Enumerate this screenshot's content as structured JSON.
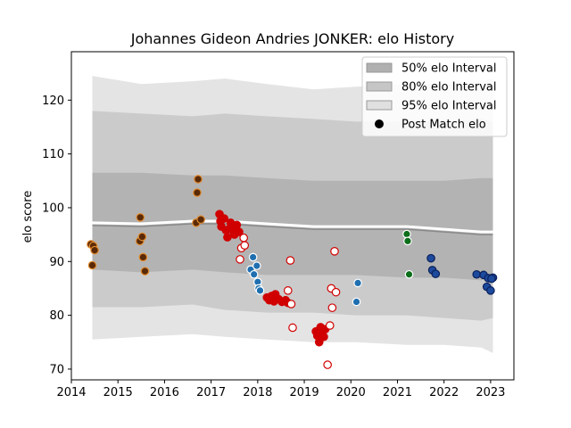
{
  "chart_data": {
    "type": "scatter",
    "title": "Johannes Gideon Andries JONKER: elo History",
    "xlabel": "",
    "ylabel": "elo score",
    "xlim": [
      2014.0,
      2023.5
    ],
    "ylim": [
      68,
      129
    ],
    "xticks": [
      "2014",
      "2015",
      "2016",
      "2017",
      "2018",
      "2019",
      "2020",
      "2021",
      "2022",
      "2023"
    ],
    "yticks": [
      "70",
      "80",
      "90",
      "100",
      "110",
      "120"
    ],
    "grid": false,
    "legend_position": "top-right",
    "legend": [
      {
        "label": "50% elo Interval",
        "kind": "band",
        "color": "#b0b0b0"
      },
      {
        "label": "80% elo Interval",
        "kind": "band",
        "color": "#c6c6c6"
      },
      {
        "label": "95% elo Interval",
        "kind": "band",
        "color": "#e0e0e0"
      },
      {
        "label": "Post Match elo",
        "kind": "marker",
        "color": "#000000"
      }
    ],
    "bands": {
      "x": [
        2014.45,
        2015.5,
        2016.6,
        2017.3,
        2018.2,
        2019.2,
        2020.1,
        2021.2,
        2022.0,
        2022.8,
        2023.05
      ],
      "p95": {
        "upper": [
          124.5,
          123.0,
          123.5,
          124.0,
          123.0,
          122.0,
          122.5,
          123.0,
          123.0,
          123.5,
          124.0
        ],
        "lower": [
          75.5,
          76.0,
          76.5,
          76.0,
          75.5,
          75.0,
          75.0,
          74.5,
          74.5,
          74.0,
          73.0
        ]
      },
      "p80": {
        "upper": [
          118.0,
          117.5,
          117.0,
          117.5,
          117.0,
          116.5,
          116.0,
          116.0,
          116.0,
          116.5,
          116.0
        ],
        "lower": [
          81.5,
          81.5,
          82.0,
          81.0,
          80.5,
          80.5,
          80.0,
          80.0,
          79.5,
          79.0,
          79.5
        ]
      },
      "p50": {
        "upper": [
          106.5,
          106.5,
          106.0,
          106.0,
          105.5,
          105.0,
          105.0,
          105.0,
          105.0,
          105.5,
          105.5
        ],
        "lower": [
          88.5,
          88.0,
          88.5,
          88.0,
          87.5,
          87.5,
          87.5,
          87.0,
          87.0,
          86.5,
          87.0
        ]
      },
      "mean": [
        97.2,
        97.0,
        97.5,
        97.5,
        97.0,
        96.5,
        96.5,
        96.5,
        96.0,
        95.5,
        95.5
      ]
    },
    "series": [
      {
        "color": "#e08a2e",
        "face": "#5a2a08",
        "points": [
          [
            2014.42,
            93.2
          ],
          [
            2014.47,
            92.9
          ],
          [
            2014.5,
            92.1
          ],
          [
            2014.45,
            89.3
          ],
          [
            2015.48,
            98.2
          ],
          [
            2015.47,
            93.8
          ],
          [
            2015.52,
            94.6
          ],
          [
            2015.54,
            90.8
          ],
          [
            2015.58,
            88.2
          ],
          [
            2016.68,
            97.2
          ],
          [
            2016.72,
            105.3
          ],
          [
            2016.7,
            102.8
          ],
          [
            2016.78,
            97.8
          ]
        ]
      },
      {
        "color": "#d00000",
        "face": "#d00000",
        "points": [
          [
            2017.18,
            98.8
          ],
          [
            2017.2,
            97.5
          ],
          [
            2017.22,
            96.5
          ],
          [
            2017.28,
            98.0
          ],
          [
            2017.32,
            95.8
          ],
          [
            2017.35,
            94.5
          ],
          [
            2017.38,
            96.0
          ],
          [
            2017.42,
            97.2
          ],
          [
            2017.45,
            96.3
          ],
          [
            2017.5,
            95.0
          ],
          [
            2017.55,
            96.8
          ],
          [
            2017.6,
            95.5
          ],
          [
            2018.2,
            83.3
          ],
          [
            2018.25,
            82.8
          ],
          [
            2018.3,
            83.6
          ],
          [
            2018.35,
            82.6
          ],
          [
            2018.38,
            83.9
          ],
          [
            2018.45,
            83.0
          ],
          [
            2018.52,
            82.5
          ],
          [
            2018.6,
            82.8
          ],
          [
            2018.65,
            82.3
          ],
          [
            2019.25,
            77.0
          ],
          [
            2019.28,
            76.2
          ],
          [
            2019.32,
            75.0
          ],
          [
            2019.35,
            77.8
          ],
          [
            2019.38,
            76.9
          ],
          [
            2019.42,
            76.0
          ],
          [
            2019.45,
            77.4
          ]
        ]
      },
      {
        "color": "#d00000",
        "face": "#ffffff",
        "points": [
          [
            2017.62,
            90.4
          ],
          [
            2017.65,
            92.5
          ],
          [
            2017.72,
            93.0
          ],
          [
            2017.7,
            94.4
          ],
          [
            2018.65,
            84.6
          ],
          [
            2018.72,
            82.1
          ],
          [
            2018.7,
            90.2
          ],
          [
            2018.75,
            77.7
          ],
          [
            2019.5,
            70.8
          ],
          [
            2019.55,
            78.1
          ],
          [
            2019.58,
            85.0
          ],
          [
            2019.6,
            81.4
          ],
          [
            2019.65,
            91.9
          ],
          [
            2019.68,
            84.3
          ]
        ]
      },
      {
        "color": "#ffffff",
        "face": "#1f6fb0",
        "points": [
          [
            2017.85,
            88.5
          ],
          [
            2017.9,
            90.8
          ],
          [
            2017.92,
            87.6
          ],
          [
            2017.98,
            89.2
          ],
          [
            2018.0,
            86.2
          ],
          [
            2018.02,
            85.0
          ],
          [
            2018.05,
            84.6
          ],
          [
            2020.15,
            86.0
          ],
          [
            2020.12,
            82.5
          ]
        ]
      },
      {
        "color": "#ffffff",
        "face": "#0b6e1a",
        "points": [
          [
            2021.2,
            95.1
          ],
          [
            2021.22,
            93.8
          ],
          [
            2021.25,
            87.6
          ]
        ]
      },
      {
        "color": "#0a1f5c",
        "face": "#1d4a9c",
        "points": [
          [
            2021.72,
            90.6
          ],
          [
            2021.75,
            88.4
          ],
          [
            2021.82,
            87.7
          ],
          [
            2022.7,
            87.6
          ],
          [
            2022.85,
            87.5
          ],
          [
            2022.92,
            85.3
          ],
          [
            2022.95,
            86.9
          ],
          [
            2023.0,
            84.6
          ],
          [
            2023.05,
            87.0
          ],
          [
            2023.02,
            86.8
          ]
        ]
      }
    ]
  }
}
